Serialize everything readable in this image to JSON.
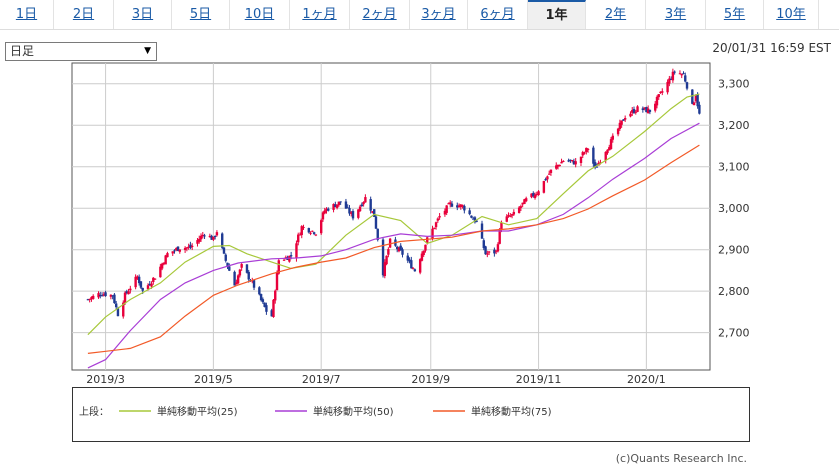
{
  "tabs": [
    {
      "label": "1日",
      "active": false
    },
    {
      "label": "2日",
      "active": false
    },
    {
      "label": "3日",
      "active": false
    },
    {
      "label": "5日",
      "active": false
    },
    {
      "label": "10日",
      "active": false
    },
    {
      "label": "1ヶ月",
      "active": false
    },
    {
      "label": "2ヶ月",
      "active": false
    },
    {
      "label": "3ヶ月",
      "active": false
    },
    {
      "label": "6ヶ月",
      "active": false
    },
    {
      "label": "1年",
      "active": true
    },
    {
      "label": "2年",
      "active": false
    },
    {
      "label": "3年",
      "active": false
    },
    {
      "label": "5年",
      "active": false
    },
    {
      "label": "10年",
      "active": false
    }
  ],
  "interval_select": {
    "value": "日足"
  },
  "timestamp": "20/01/31 16:59 EST",
  "legend_prefix": "上段：",
  "credit": "(c)Quants Research Inc.",
  "colors": {
    "up": "#e8003b",
    "down": "#1f3a93",
    "ma25": "#a7c83a",
    "ma50": "#a93ed6",
    "ma75": "#f25a28",
    "grid": "#cccccc",
    "frame": "#555555"
  },
  "chart_data": {
    "type": "candlestick",
    "title": "",
    "xlabel": "",
    "ylabel": "",
    "ylim": [
      2610,
      3350
    ],
    "yticks": [
      2700,
      2800,
      2900,
      3000,
      3100,
      3200,
      3300
    ],
    "ytick_labels": [
      "2,700",
      "2,800",
      "2,900",
      "3,000",
      "3,100",
      "3,200",
      "3,300"
    ],
    "xticks": [
      "2019-03-01",
      "2019-05-01",
      "2019-07-01",
      "2019-09-01",
      "2019-11-01",
      "2020-01-01"
    ],
    "xtick_labels": [
      "2019/3",
      "2019/5",
      "2019/7",
      "2019/9",
      "2019/11",
      "2020/1"
    ],
    "xlim": [
      "2019-02-10",
      "2020-02-06"
    ],
    "close_series": {
      "name": "close",
      "points": [
        [
          "2019-02-19",
          2780
        ],
        [
          "2019-02-26",
          2795
        ],
        [
          "2019-03-05",
          2790
        ],
        [
          "2019-03-08",
          2745
        ],
        [
          "2019-03-12",
          2790
        ],
        [
          "2019-03-19",
          2835
        ],
        [
          "2019-03-22",
          2800
        ],
        [
          "2019-03-29",
          2835
        ],
        [
          "2019-04-05",
          2890
        ],
        [
          "2019-04-12",
          2905
        ],
        [
          "2019-04-18",
          2905
        ],
        [
          "2019-04-26",
          2940
        ],
        [
          "2019-05-01",
          2925
        ],
        [
          "2019-05-03",
          2945
        ],
        [
          "2019-05-07",
          2885
        ],
        [
          "2019-05-13",
          2815
        ],
        [
          "2019-05-17",
          2860
        ],
        [
          "2019-05-23",
          2820
        ],
        [
          "2019-05-31",
          2752
        ],
        [
          "2019-06-03",
          2740
        ],
        [
          "2019-06-07",
          2875
        ],
        [
          "2019-06-14",
          2885
        ],
        [
          "2019-06-20",
          2955
        ],
        [
          "2019-06-28",
          2942
        ],
        [
          "2019-07-03",
          2995
        ],
        [
          "2019-07-12",
          3015
        ],
        [
          "2019-07-19",
          2980
        ],
        [
          "2019-07-26",
          3025
        ],
        [
          "2019-07-31",
          2982
        ],
        [
          "2019-08-05",
          2845
        ],
        [
          "2019-08-09",
          2920
        ],
        [
          "2019-08-16",
          2890
        ],
        [
          "2019-08-23",
          2850
        ],
        [
          "2019-08-30",
          2925
        ],
        [
          "2019-09-06",
          2980
        ],
        [
          "2019-09-12",
          3010
        ],
        [
          "2019-09-19",
          3005
        ],
        [
          "2019-09-27",
          2965
        ],
        [
          "2019-10-02",
          2890
        ],
        [
          "2019-10-08",
          2895
        ],
        [
          "2019-10-11",
          2970
        ],
        [
          "2019-10-18",
          2985
        ],
        [
          "2019-10-25",
          3020
        ],
        [
          "2019-10-31",
          3038
        ],
        [
          "2019-11-08",
          3090
        ],
        [
          "2019-11-15",
          3115
        ],
        [
          "2019-11-22",
          3110
        ],
        [
          "2019-11-29",
          3145
        ],
        [
          "2019-12-03",
          3095
        ],
        [
          "2019-12-09",
          3140
        ],
        [
          "2019-12-13",
          3168
        ],
        [
          "2019-12-20",
          3222
        ],
        [
          "2019-12-27",
          3240
        ],
        [
          "2020-01-03",
          3235
        ],
        [
          "2020-01-09",
          3275
        ],
        [
          "2020-01-17",
          3330
        ],
        [
          "2020-01-22",
          3322
        ],
        [
          "2020-01-24",
          3295
        ],
        [
          "2020-01-27",
          3245
        ],
        [
          "2020-01-29",
          3275
        ],
        [
          "2020-01-31",
          3225
        ]
      ]
    },
    "series": [
      {
        "name": "単純移動平均(25)",
        "color": "#a7c83a",
        "points": [
          [
            "2019-02-19",
            2695
          ],
          [
            "2019-03-01",
            2738
          ],
          [
            "2019-03-15",
            2780
          ],
          [
            "2019-04-01",
            2820
          ],
          [
            "2019-04-15",
            2870
          ],
          [
            "2019-05-01",
            2908
          ],
          [
            "2019-05-10",
            2910
          ],
          [
            "2019-05-20",
            2890
          ],
          [
            "2019-06-03",
            2870
          ],
          [
            "2019-06-14",
            2855
          ],
          [
            "2019-06-28",
            2865
          ],
          [
            "2019-07-15",
            2935
          ],
          [
            "2019-07-31",
            2985
          ],
          [
            "2019-08-15",
            2970
          ],
          [
            "2019-08-30",
            2915
          ],
          [
            "2019-09-13",
            2935
          ],
          [
            "2019-09-30",
            2980
          ],
          [
            "2019-10-15",
            2960
          ],
          [
            "2019-10-31",
            2975
          ],
          [
            "2019-11-15",
            3035
          ],
          [
            "2019-11-29",
            3090
          ],
          [
            "2019-12-13",
            3125
          ],
          [
            "2019-12-31",
            3185
          ],
          [
            "2020-01-15",
            3240
          ],
          [
            "2020-01-24",
            3268
          ],
          [
            "2020-01-31",
            3275
          ]
        ]
      },
      {
        "name": "単純移動平均(50)",
        "color": "#a93ed6",
        "points": [
          [
            "2019-02-19",
            2615
          ],
          [
            "2019-03-01",
            2635
          ],
          [
            "2019-03-15",
            2705
          ],
          [
            "2019-04-01",
            2780
          ],
          [
            "2019-04-15",
            2820
          ],
          [
            "2019-05-01",
            2850
          ],
          [
            "2019-05-15",
            2868
          ],
          [
            "2019-06-03",
            2878
          ],
          [
            "2019-06-17",
            2880
          ],
          [
            "2019-07-01",
            2885
          ],
          [
            "2019-07-15",
            2900
          ],
          [
            "2019-07-31",
            2925
          ],
          [
            "2019-08-15",
            2938
          ],
          [
            "2019-08-30",
            2932
          ],
          [
            "2019-09-13",
            2935
          ],
          [
            "2019-09-30",
            2945
          ],
          [
            "2019-10-15",
            2945
          ],
          [
            "2019-10-31",
            2960
          ],
          [
            "2019-11-15",
            2985
          ],
          [
            "2019-11-29",
            3025
          ],
          [
            "2019-12-13",
            3070
          ],
          [
            "2019-12-31",
            3120
          ],
          [
            "2020-01-15",
            3168
          ],
          [
            "2020-01-31",
            3205
          ]
        ]
      },
      {
        "name": "単純移動平均(75)",
        "color": "#f25a28",
        "points": [
          [
            "2019-02-19",
            2650
          ],
          [
            "2019-03-01",
            2655
          ],
          [
            "2019-03-15",
            2662
          ],
          [
            "2019-04-01",
            2690
          ],
          [
            "2019-04-15",
            2740
          ],
          [
            "2019-05-01",
            2790
          ],
          [
            "2019-05-15",
            2815
          ],
          [
            "2019-06-03",
            2842
          ],
          [
            "2019-06-17",
            2858
          ],
          [
            "2019-07-01",
            2870
          ],
          [
            "2019-07-15",
            2880
          ],
          [
            "2019-07-31",
            2905
          ],
          [
            "2019-08-15",
            2920
          ],
          [
            "2019-08-30",
            2925
          ],
          [
            "2019-09-13",
            2930
          ],
          [
            "2019-09-30",
            2945
          ],
          [
            "2019-10-15",
            2950
          ],
          [
            "2019-10-31",
            2960
          ],
          [
            "2019-11-15",
            2975
          ],
          [
            "2019-11-29",
            2998
          ],
          [
            "2019-12-13",
            3030
          ],
          [
            "2019-12-31",
            3068
          ],
          [
            "2020-01-15",
            3110
          ],
          [
            "2020-01-31",
            3152
          ]
        ]
      }
    ]
  }
}
